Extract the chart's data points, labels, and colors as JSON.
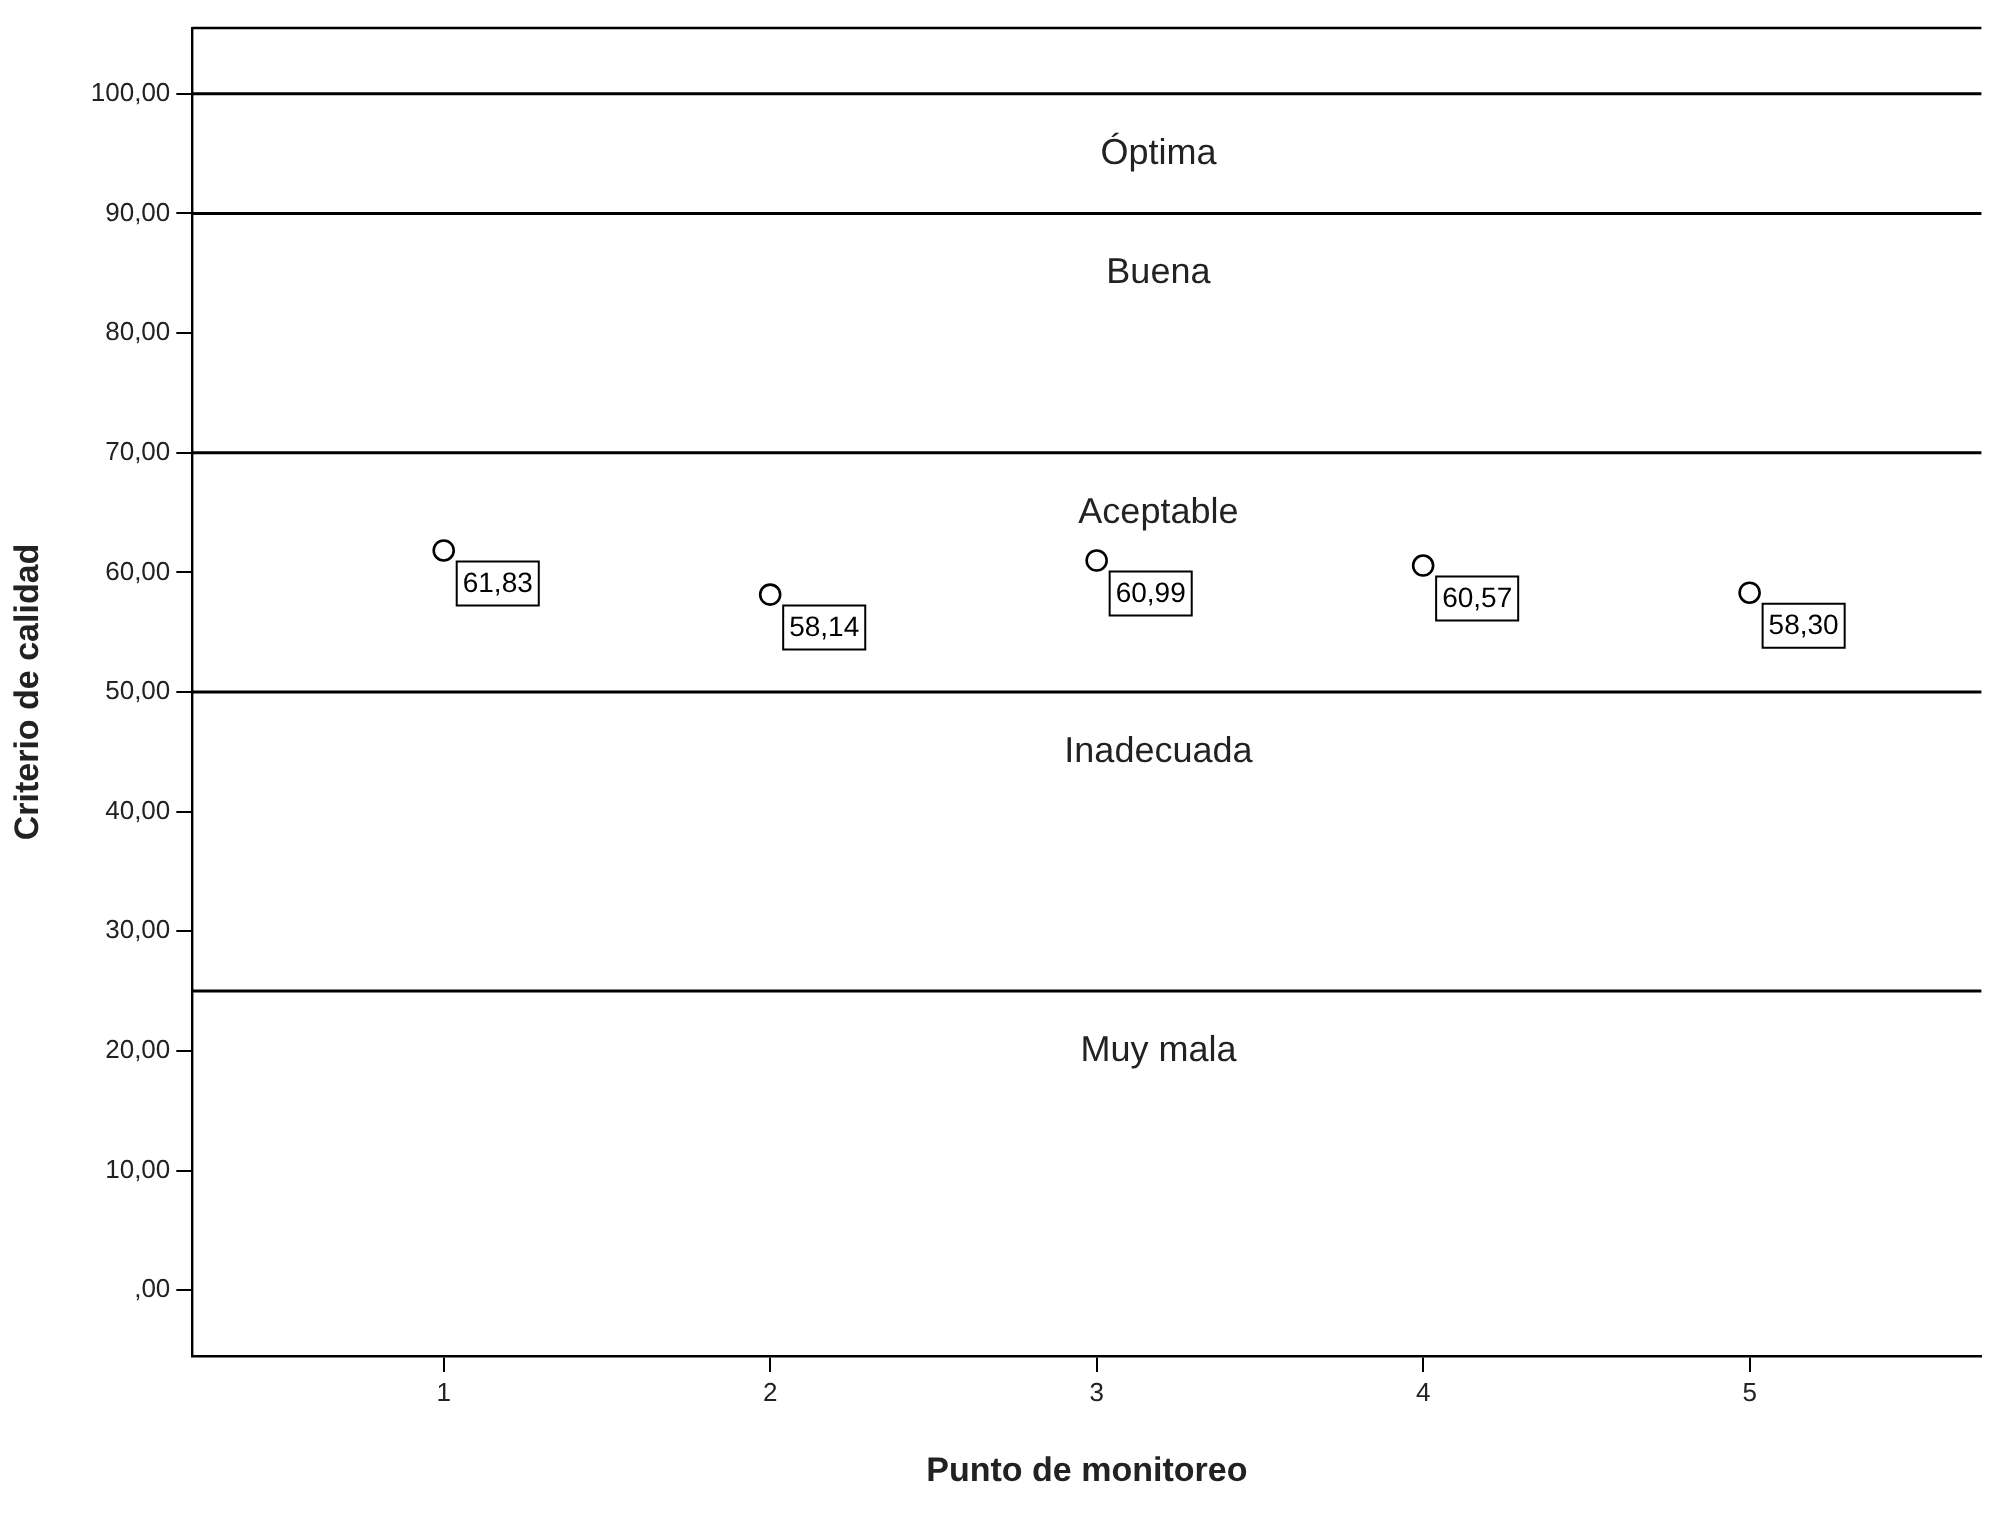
{
  "chart_data": {
    "type": "scatter",
    "xlabel": "Punto de monitoreo",
    "ylabel": "Criterio de calidad",
    "x": [
      1,
      2,
      3,
      4,
      5
    ],
    "values": [
      61.83,
      58.14,
      60.99,
      60.57,
      58.3
    ],
    "value_labels": [
      "61,83",
      "58,14",
      "60,99",
      "60,57",
      "58,30"
    ],
    "color": "#000000",
    "marker": "circle",
    "xlim": [
      0.23,
      5.71
    ],
    "xticks": [
      1,
      2,
      3,
      4,
      5
    ],
    "ylim": [
      -5.5,
      105.5
    ],
    "yticks": [
      {
        "value": 0,
        "label": ",00"
      },
      {
        "value": 10,
        "label": "10,00"
      },
      {
        "value": 20,
        "label": "20,00"
      },
      {
        "value": 30,
        "label": "30,00"
      },
      {
        "value": 40,
        "label": "40,00"
      },
      {
        "value": 50,
        "label": "50,00"
      },
      {
        "value": 60,
        "label": "60,00"
      },
      {
        "value": 70,
        "label": "70,00"
      },
      {
        "value": 80,
        "label": "80,00"
      },
      {
        "value": 90,
        "label": "90,00"
      },
      {
        "value": 100,
        "label": "100,00"
      }
    ],
    "ref_lines": [
      {
        "axis": "y",
        "value": 100,
        "color": "#000000"
      },
      {
        "axis": "y",
        "value": 90,
        "color": "#000000"
      },
      {
        "axis": "y",
        "value": 70,
        "color": "#000000"
      },
      {
        "axis": "y",
        "value": 50,
        "color": "#000000"
      },
      {
        "axis": "y",
        "value": 25,
        "color": "#000000"
      }
    ],
    "annotations": [
      "Óptima",
      "Buena",
      "Aceptable",
      "Inadecuada",
      "Muy mala"
    ],
    "grid": false,
    "legend": false
  }
}
